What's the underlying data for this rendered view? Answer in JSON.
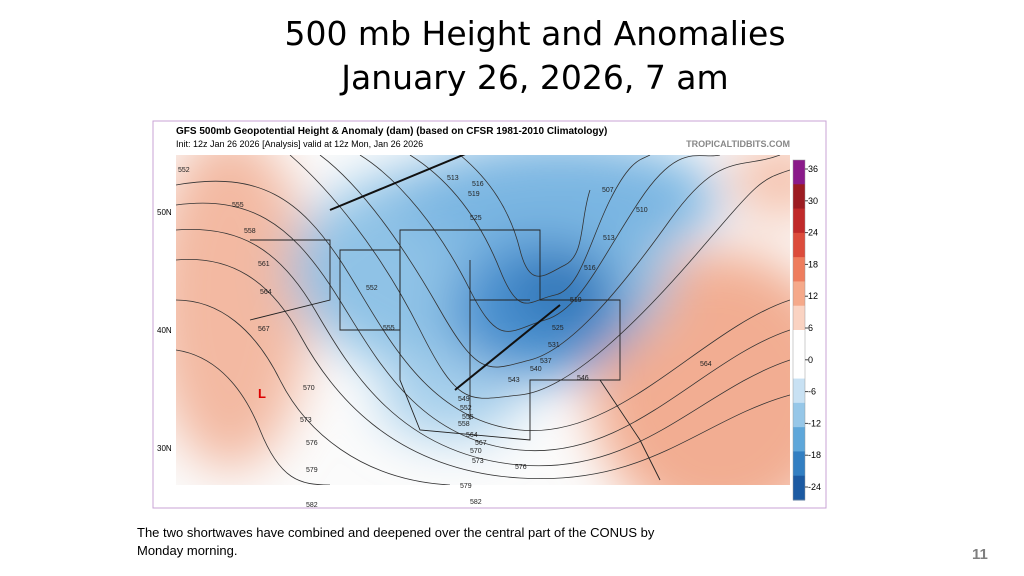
{
  "slide": {
    "title_line1": "500 mb Height and Anomalies",
    "title_line2": "January 26, 2026, 7 am",
    "caption_line1": "The two shortwaves have combined and deepened over the central part of the CONUS by",
    "caption_line2": "Monday morning.",
    "page_number": "11"
  },
  "map": {
    "header": "GFS 500mb Geopotential Height & Anomaly (dam) (based on CFSR 1981-2010 Climatology)",
    "subheader": "Init: 12z Jan 26 2026   [Analysis]   valid at 12z Mon, Jan 26 2026",
    "credit": "TROPICALTIDBITS.COM",
    "low_marker": "L",
    "latitudes": [
      "50N",
      "40N",
      "30N"
    ],
    "contour_labels": [
      552,
      555,
      558,
      561,
      564,
      567,
      570,
      573,
      576,
      579,
      582,
      513,
      516,
      519,
      525,
      507,
      510,
      513,
      516,
      519,
      525,
      531,
      537,
      540,
      543,
      546,
      549,
      552,
      555,
      558,
      564,
      567,
      570,
      573,
      576,
      579,
      582,
      552,
      555,
      564
    ],
    "colorbar": {
      "ticks": [
        36,
        30,
        24,
        18,
        12,
        6,
        0,
        -6,
        -12,
        -18,
        -24
      ]
    }
  }
}
